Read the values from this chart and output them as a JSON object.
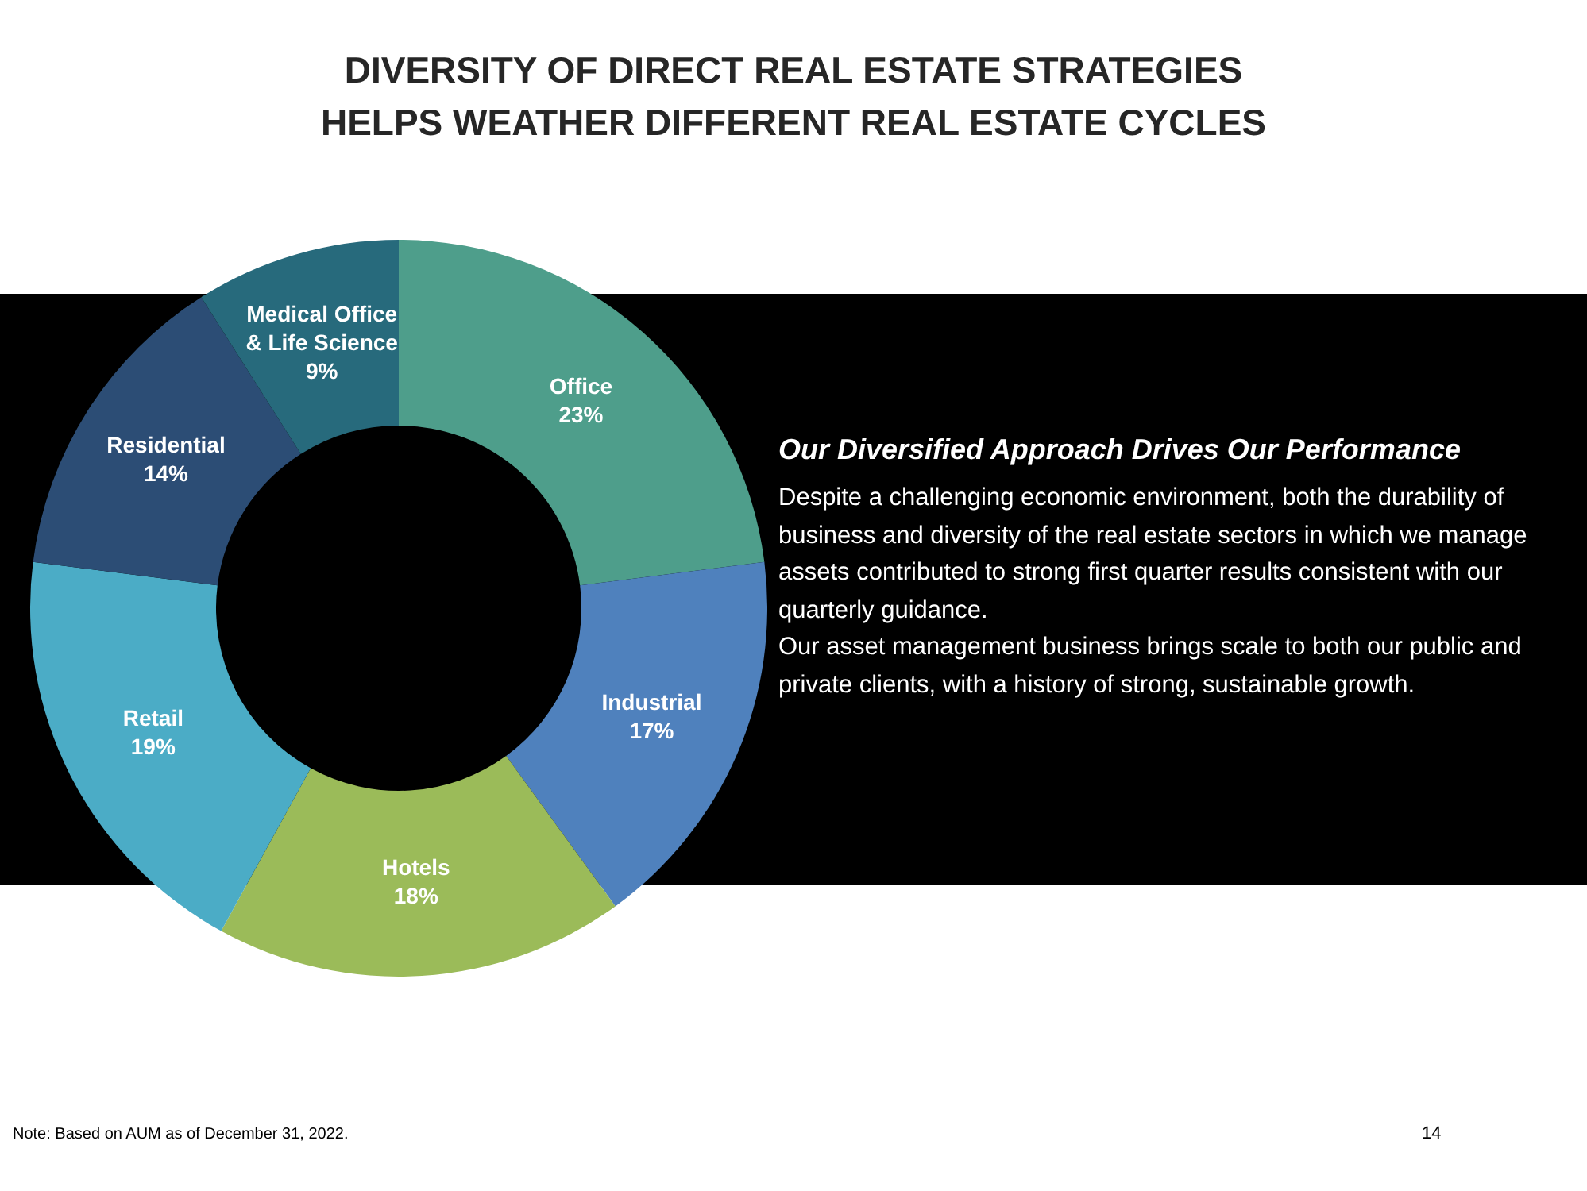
{
  "chart_data": {
    "type": "donut",
    "title": "DIVERSITY OF DIRECT REAL ESTATE STRATEGIES\nHELPS WEATHER DIFFERENT REAL ESTATE CYCLES",
    "categories": [
      "Office",
      "Industrial",
      "Hotels",
      "Retail",
      "Residential",
      "Medical Office & Life Science"
    ],
    "values": [
      23,
      17,
      18,
      19,
      14,
      9
    ],
    "value_labels": [
      "23%",
      "17%",
      "18%",
      "19%",
      "14%",
      "9%"
    ],
    "colors": [
      "#4e9e8b",
      "#4f81bd",
      "#9bbb59",
      "#4bacc6",
      "#2c4d75",
      "#276a7c"
    ],
    "annotations": [
      "Our Diversified Approach Drives Our Performance",
      "Despite a challenging economic environment, both the durability of business and diversity of the real estate sectors in which we manage assets contributed to strong first quarter results consistent with our quarterly guidance.",
      "Our asset management business brings scale to both our public and private clients, with a history of strong, sustainable growth.",
      "Note: Based on AUM as of December 31, 2022.",
      "14"
    ]
  }
}
